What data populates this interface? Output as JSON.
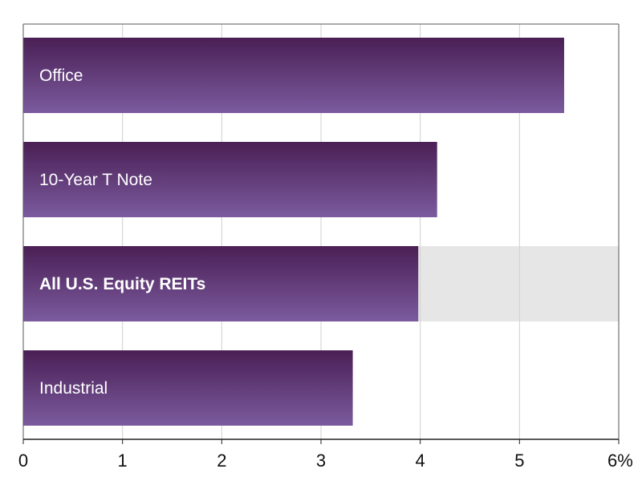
{
  "chart_data": {
    "type": "bar",
    "orientation": "horizontal",
    "categories": [
      "Office",
      "10-Year T Note",
      "All U.S. Equity REITs",
      "Industrial"
    ],
    "values": [
      5.45,
      4.17,
      3.98,
      3.32
    ],
    "highlighted_category": "All U.S. Equity REITs",
    "xlim": [
      0,
      6
    ],
    "x_ticks": [
      0,
      1,
      2,
      3,
      4,
      5,
      6
    ],
    "x_tick_labels": [
      "0",
      "1",
      "2",
      "3",
      "4",
      "5",
      "6%"
    ],
    "grid": "vertical",
    "title": "",
    "xlabel": "",
    "ylabel": "",
    "colors": {
      "bar_top": "#4a1f55",
      "bar_bottom": "#7b5b9e",
      "highlight_band": "#e6e6e6",
      "grid": "#d0d0d0",
      "axis": "#555555",
      "label": "#ffffff"
    }
  }
}
